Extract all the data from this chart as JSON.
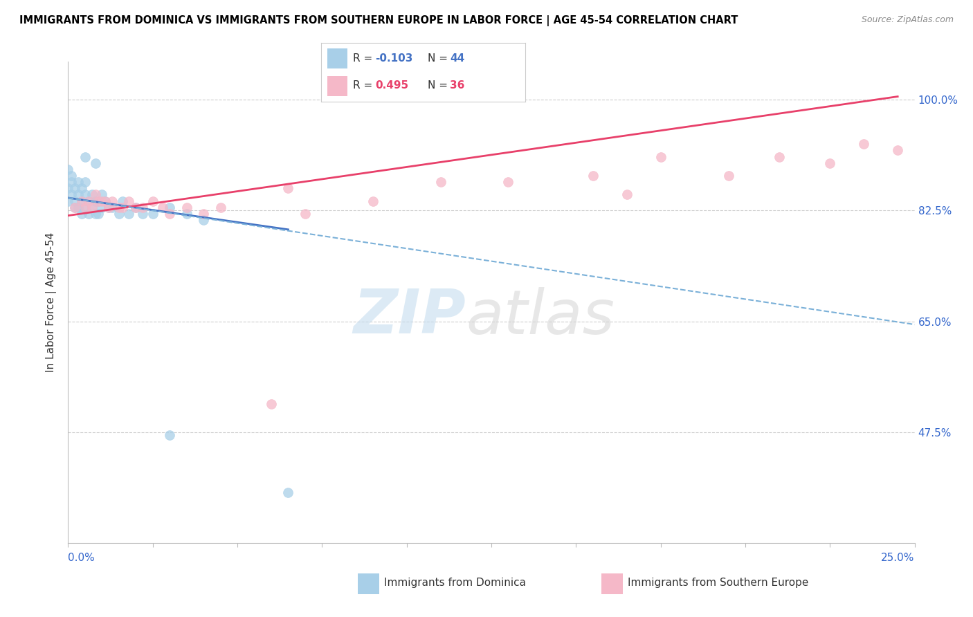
{
  "title": "IMMIGRANTS FROM DOMINICA VS IMMIGRANTS FROM SOUTHERN EUROPE IN LABOR FORCE | AGE 45-54 CORRELATION CHART",
  "source": "Source: ZipAtlas.com",
  "ylabel": "In Labor Force | Age 45-54",
  "xlim": [
    0.0,
    0.25
  ],
  "ylim": [
    0.3,
    1.06
  ],
  "blue_color": "#a8cfe8",
  "pink_color": "#f5b8c8",
  "blue_line_color": "#4472c4",
  "pink_line_color": "#e8406a",
  "dashed_line_color": "#7ab0d8",
  "legend_blue_r": "-0.103",
  "legend_blue_n": "44",
  "legend_pink_r": "0.495",
  "legend_pink_n": "36",
  "legend_label_blue": "Immigrants from Dominica",
  "legend_label_pink": "Immigrants from Southern Europe",
  "ytick_positions": [
    0.475,
    0.65,
    0.825,
    1.0
  ],
  "ytick_labels": [
    "47.5%",
    "65.0%",
    "82.5%",
    "100.0%"
  ],
  "xtick_positions": [
    0.0,
    0.025,
    0.05,
    0.075,
    0.1,
    0.125,
    0.15,
    0.175,
    0.2,
    0.225,
    0.25
  ],
  "blue_scatter_x": [
    0.0,
    0.0,
    0.0,
    0.001,
    0.001,
    0.001,
    0.002,
    0.002,
    0.002,
    0.003,
    0.003,
    0.003,
    0.004,
    0.004,
    0.004,
    0.005,
    0.005,
    0.005,
    0.006,
    0.006,
    0.007,
    0.007,
    0.008,
    0.008,
    0.009,
    0.009,
    0.01,
    0.01,
    0.011,
    0.012,
    0.013,
    0.015,
    0.016,
    0.018,
    0.02,
    0.022,
    0.025,
    0.03,
    0.035,
    0.04,
    0.005,
    0.008,
    0.03,
    0.065
  ],
  "blue_scatter_y": [
    0.84,
    0.86,
    0.89,
    0.87,
    0.85,
    0.88,
    0.84,
    0.86,
    0.83,
    0.85,
    0.87,
    0.83,
    0.84,
    0.86,
    0.82,
    0.85,
    0.83,
    0.87,
    0.84,
    0.82,
    0.85,
    0.83,
    0.84,
    0.82,
    0.84,
    0.82,
    0.83,
    0.85,
    0.84,
    0.83,
    0.83,
    0.82,
    0.84,
    0.82,
    0.83,
    0.82,
    0.82,
    0.83,
    0.82,
    0.81,
    0.91,
    0.9,
    0.47,
    0.38
  ],
  "pink_scatter_x": [
    0.002,
    0.004,
    0.005,
    0.006,
    0.007,
    0.008,
    0.009,
    0.01,
    0.011,
    0.012,
    0.013,
    0.015,
    0.016,
    0.018,
    0.02,
    0.022,
    0.025,
    0.028,
    0.03,
    0.035,
    0.04,
    0.045,
    0.065,
    0.07,
    0.09,
    0.11,
    0.13,
    0.155,
    0.165,
    0.175,
    0.195,
    0.21,
    0.225,
    0.235,
    0.245,
    0.06
  ],
  "pink_scatter_y": [
    0.83,
    0.84,
    0.83,
    0.84,
    0.83,
    0.85,
    0.84,
    0.84,
    0.84,
    0.83,
    0.84,
    0.83,
    0.83,
    0.84,
    0.83,
    0.83,
    0.84,
    0.83,
    0.82,
    0.83,
    0.82,
    0.83,
    0.86,
    0.82,
    0.84,
    0.87,
    0.87,
    0.88,
    0.85,
    0.91,
    0.88,
    0.91,
    0.9,
    0.93,
    0.92,
    0.52
  ],
  "blue_line_x": [
    0.0,
    0.065
  ],
  "blue_line_y": [
    0.845,
    0.795
  ],
  "pink_line_x": [
    0.0,
    0.245
  ],
  "pink_line_y": [
    0.817,
    1.005
  ],
  "dashed_line_x": [
    0.0,
    0.25
  ],
  "dashed_line_y": [
    0.845,
    0.645
  ]
}
